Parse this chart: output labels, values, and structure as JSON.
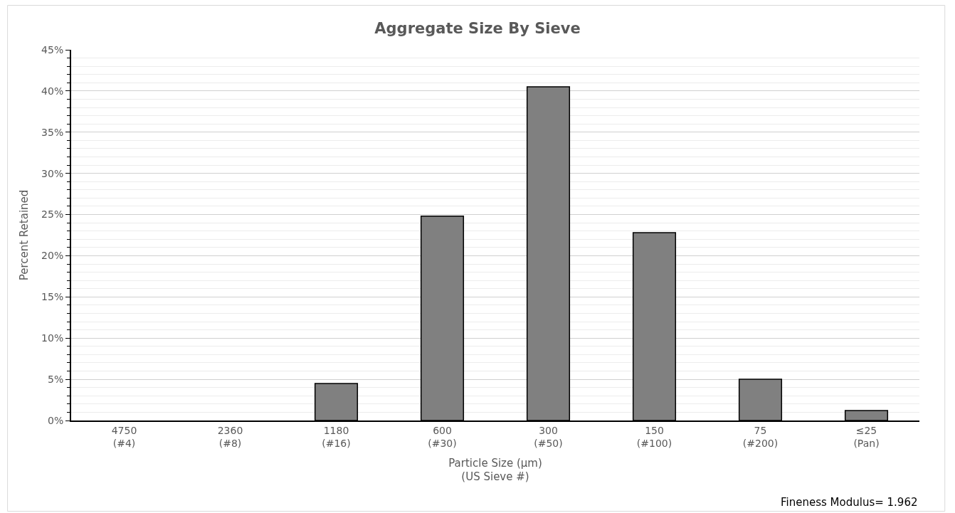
{
  "chart_data": {
    "type": "bar",
    "title": "Aggregate Size By Sieve",
    "xlabel": "Particle Size (µm)\n(US Sieve #)",
    "ylabel": "Percent Retained",
    "categories": [
      "4750\n(#4)",
      "2360\n(#8)",
      "1180\n(#16)",
      "600\n(#30)",
      "300\n(#50)",
      "150\n(#100)",
      "75\n(#200)",
      "≤25\n(Pan)"
    ],
    "values": [
      0,
      0,
      4.5,
      24.8,
      40.5,
      22.8,
      5.0,
      1.2
    ],
    "color": "#808080",
    "ylim": [
      0,
      45
    ],
    "yticks": [
      {
        "value": 0,
        "label": "0%"
      },
      {
        "value": 5,
        "label": "5%"
      },
      {
        "value": 10,
        "label": "10%"
      },
      {
        "value": 15,
        "label": "15%"
      },
      {
        "value": 20,
        "label": "20%"
      },
      {
        "value": 25,
        "label": "25%"
      },
      {
        "value": 30,
        "label": "30%"
      },
      {
        "value": 35,
        "label": "35%"
      },
      {
        "value": 40,
        "label": "40%"
      },
      {
        "value": 45,
        "label": "45%"
      }
    ],
    "grid": "y",
    "annotations": [
      "Fineness Modulus= 1.962"
    ]
  }
}
